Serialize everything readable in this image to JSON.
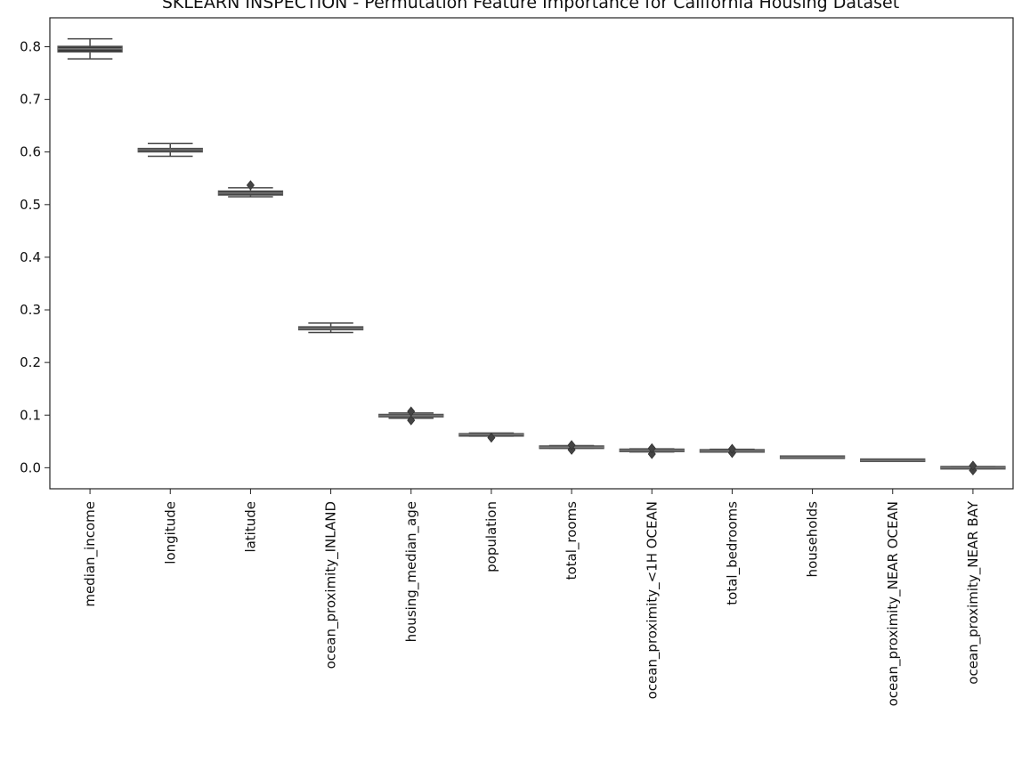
{
  "chart_data": {
    "type": "box",
    "title": "SKLEARN INSPECTION - Permutation Feature Importance for California Housing Dataset",
    "xlabel": "",
    "ylabel": "",
    "ylim": [
      -0.04,
      0.855
    ],
    "yticks": [
      0.0,
      0.1,
      0.2,
      0.3,
      0.4,
      0.5,
      0.6,
      0.7,
      0.8
    ],
    "ytick_labels": [
      "0.0",
      "0.1",
      "0.2",
      "0.3",
      "0.4",
      "0.5",
      "0.6",
      "0.7",
      "0.8"
    ],
    "grid": false,
    "categories": [
      "median_income",
      "longitude",
      "latitude",
      "ocean_proximity_INLAND",
      "housing_median_age",
      "population",
      "total_rooms",
      "ocean_proximity_<1H OCEAN",
      "total_bedrooms",
      "households",
      "ocean_proximity_NEAR OCEAN",
      "ocean_proximity_NEAR BAY"
    ],
    "boxes": [
      {
        "whisker_low": 0.777,
        "q1": 0.79,
        "median": 0.796,
        "q3": 0.801,
        "whisker_high": 0.815,
        "outliers": []
      },
      {
        "whisker_low": 0.592,
        "q1": 0.6,
        "median": 0.604,
        "q3": 0.607,
        "whisker_high": 0.616,
        "outliers": []
      },
      {
        "whisker_low": 0.515,
        "q1": 0.518,
        "median": 0.522,
        "q3": 0.526,
        "whisker_high": 0.532,
        "outliers": [
          0.537
        ]
      },
      {
        "whisker_low": 0.257,
        "q1": 0.262,
        "median": 0.265,
        "q3": 0.268,
        "whisker_high": 0.275,
        "outliers": []
      },
      {
        "whisker_low": 0.094,
        "q1": 0.097,
        "median": 0.099,
        "q3": 0.101,
        "whisker_high": 0.104,
        "outliers": [
          0.09,
          0.107
        ]
      },
      {
        "whisker_low": 0.06,
        "q1": 0.061,
        "median": 0.063,
        "q3": 0.064,
        "whisker_high": 0.066,
        "outliers": [
          0.057
        ]
      },
      {
        "whisker_low": 0.037,
        "q1": 0.038,
        "median": 0.039,
        "q3": 0.04,
        "whisker_high": 0.042,
        "outliers": [
          0.034,
          0.043
        ]
      },
      {
        "whisker_low": 0.03,
        "q1": 0.032,
        "median": 0.033,
        "q3": 0.034,
        "whisker_high": 0.036,
        "outliers": [
          0.026,
          0.037
        ]
      },
      {
        "whisker_low": 0.03,
        "q1": 0.031,
        "median": 0.032,
        "q3": 0.033,
        "whisker_high": 0.035,
        "outliers": [
          0.028,
          0.036
        ]
      },
      {
        "whisker_low": 0.019,
        "q1": 0.0195,
        "median": 0.02,
        "q3": 0.0205,
        "whisker_high": 0.021,
        "outliers": []
      },
      {
        "whisker_low": 0.013,
        "q1": 0.0135,
        "median": 0.014,
        "q3": 0.015,
        "whisker_high": 0.016,
        "outliers": []
      },
      {
        "whisker_low": -0.002,
        "q1": -0.001,
        "median": 0.0,
        "q3": 0.001,
        "whisker_high": 0.002,
        "outliers": [
          -0.005,
          0.004
        ]
      }
    ],
    "colors": {
      "box_fill": "#3a3a3a",
      "box_edge": "#555555",
      "median": "#7a7a7a",
      "whisker": "#444444",
      "frame": "#222222"
    }
  }
}
